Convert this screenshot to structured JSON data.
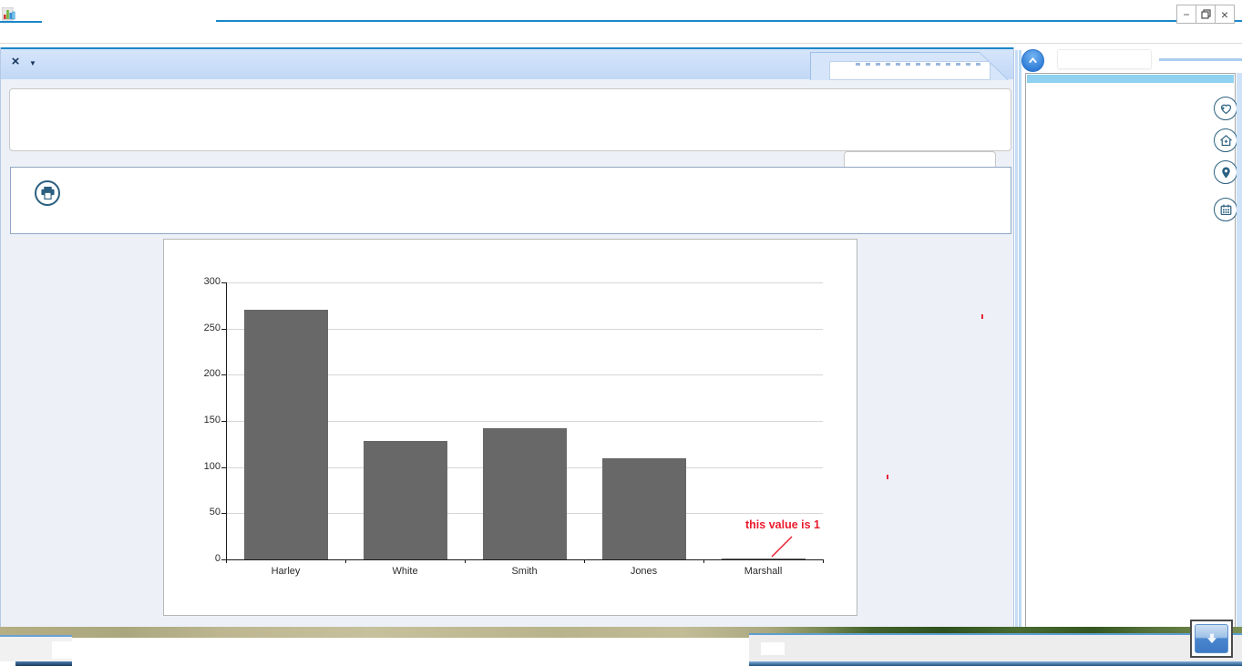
{
  "window": {
    "app_icon": "bar-chart-app-icon",
    "controls": {
      "minimize": "−",
      "restore": "restore",
      "close": "×"
    }
  },
  "main_panel": {
    "header": {
      "close_label": "×",
      "dropdown_label": "▼"
    },
    "toolbar_icon": "print-icon"
  },
  "right_panel": {
    "icons": [
      {
        "name": "favorite-heart-add-icon"
      },
      {
        "name": "home-add-icon"
      },
      {
        "name": "location-pin-icon"
      },
      {
        "name": "calendar-icon"
      }
    ],
    "collapse_icon": "chevron-up-icon",
    "scroll_icon": "arrow-down-icon"
  },
  "colors": {
    "accent_blue": "#1b87c9",
    "header_blue": "#c9ddf7",
    "icon_teal": "#2a5f80",
    "sky_strip": "#8ed1f1",
    "annotation_red": "#ec1b2e",
    "bar_gray": "#686868"
  },
  "chart_data": {
    "type": "bar",
    "categories": [
      "Harley",
      "White",
      "Smith",
      "Jones",
      "Marshall"
    ],
    "values": [
      270,
      128,
      142,
      110,
      1
    ],
    "title": "",
    "xlabel": "",
    "ylabel": "",
    "ylim": [
      0,
      300
    ],
    "ytick_step": 50,
    "grid": true,
    "legend": "none",
    "bar_color": "#686868",
    "annotation": {
      "text": "this value is 1",
      "target": "Marshall",
      "color": "#ec1b2e"
    }
  }
}
